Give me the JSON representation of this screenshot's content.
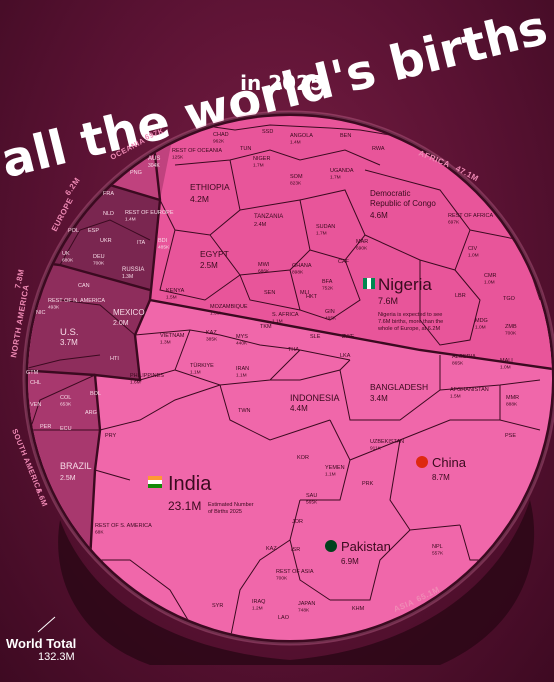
{
  "title": {
    "line1": "all the world's births",
    "line2": "in 2025"
  },
  "world_total": {
    "label": "World Total",
    "value": "132.3M"
  },
  "colors": {
    "africa": "#e8559a",
    "asia": "#f26aab",
    "europe": "#7a2650",
    "north_america": "#8e2d5c",
    "south_america": "#a8386e",
    "oceania": "#c0427e",
    "border": "#3b0a20"
  },
  "chart_data": {
    "type": "voronoi-treemap",
    "title": "all the world's births in 2025",
    "unit": "births (millions unless marked K)",
    "regions": [
      {
        "name": "AFRICA",
        "total": "47.1M"
      },
      {
        "name": "ASIA",
        "total": "65.1M"
      },
      {
        "name": "EUROPE",
        "total": "6.2M"
      },
      {
        "name": "NORTH AMERICA",
        "total": "7.8M"
      },
      {
        "name": "SOUTH AMERICA",
        "total": "5.6M"
      },
      {
        "name": "OCEANIA",
        "total": "697K"
      }
    ],
    "countries": [
      {
        "name": "Nigeria",
        "value": "7.6M",
        "region": "AFRICA"
      },
      {
        "name": "Democratic Republic of Congo",
        "value": "4.6M",
        "region": "AFRICA"
      },
      {
        "name": "ETHIOPIA",
        "value": "4.2M",
        "region": "AFRICA"
      },
      {
        "name": "EGYPT",
        "value": "2.5M",
        "region": "AFRICA"
      },
      {
        "name": "TANZANIA",
        "value": "2.4M",
        "region": "AFRICA"
      },
      {
        "name": "India",
        "value": "23.1M",
        "region": "ASIA"
      },
      {
        "name": "China",
        "value": "8.7M",
        "region": "ASIA"
      },
      {
        "name": "Pakistan",
        "value": "6.9M",
        "region": "ASIA"
      },
      {
        "name": "INDONESIA",
        "value": "4.4M",
        "region": "ASIA"
      },
      {
        "name": "BANGLADESH",
        "value": "3.4M",
        "region": "ASIA"
      },
      {
        "name": "U.S.",
        "value": "3.7M",
        "region": "NORTH AMERICA"
      },
      {
        "name": "MEXICO",
        "value": "2.0M",
        "region": "NORTH AMERICA"
      },
      {
        "name": "BRAZIL",
        "value": "2.5M",
        "region": "SOUTH AMERICA"
      },
      {
        "name": "RUSSIA",
        "value": "1.3M",
        "region": "EUROPE"
      },
      {
        "name": "AUS",
        "value": "304K",
        "region": "OCEANIA"
      }
    ],
    "annotations": [
      "Nigeria is expected to see 7.6M births, more than the whole of Europe, at 6.2M",
      "Estimated Number of Births 2025"
    ]
  },
  "labels": [
    {
      "name": "SSD",
      "value": ""
    },
    {
      "name": "CHAD",
      "value": "962K"
    },
    {
      "name": "ANGOLA",
      "value": "1.4M"
    },
    {
      "name": "BEN",
      "value": ""
    },
    {
      "name": "RWA",
      "value": ""
    },
    {
      "name": "REST OF OCEANIA",
      "value": "125K"
    },
    {
      "name": "TUN",
      "value": ""
    },
    {
      "name": "NIGER",
      "value": "1.7M"
    },
    {
      "name": "UGANDA",
      "value": "1.7M"
    },
    {
      "name": "PNG",
      "value": ""
    },
    {
      "name": "SOM",
      "value": "823K"
    },
    {
      "name": "FRA",
      "value": ""
    },
    {
      "name": "NLD",
      "value": ""
    },
    {
      "name": "REST OF EUROPE",
      "value": "1.4M"
    },
    {
      "name": "POL",
      "value": ""
    },
    {
      "name": "ESP",
      "value": ""
    },
    {
      "name": "UKR",
      "value": ""
    },
    {
      "name": "ITA",
      "value": ""
    },
    {
      "name": "UK",
      "value": "680K"
    },
    {
      "name": "DEU",
      "value": "700K"
    },
    {
      "name": "SUDAN",
      "value": "1.7M"
    },
    {
      "name": "REST OF AFRICA",
      "value": "697K"
    },
    {
      "name": "MAR",
      "value": "690K"
    },
    {
      "name": "CIV",
      "value": "1.0M"
    },
    {
      "name": "CMR",
      "value": "1.0M"
    },
    {
      "name": "MWI",
      "value": "686K"
    },
    {
      "name": "GHANA",
      "value": "898K"
    },
    {
      "name": "KENYA",
      "value": "1.5M"
    },
    {
      "name": "MOZAMBIQUE",
      "value": "1.3M"
    },
    {
      "name": "BFA",
      "value": "752K"
    },
    {
      "name": "SEN",
      "value": ""
    },
    {
      "name": "MLI",
      "value": ""
    },
    {
      "name": "GIN",
      "value": "495K"
    },
    {
      "name": "S. AFRICA",
      "value": "1.1M"
    },
    {
      "name": "MDG",
      "value": "1.0M"
    },
    {
      "name": "ZMB",
      "value": "700K"
    },
    {
      "name": "LBR",
      "value": ""
    },
    {
      "name": "TGO",
      "value": ""
    },
    {
      "name": "ALGERIA",
      "value": "865K"
    },
    {
      "name": "MALI",
      "value": "1.0M"
    },
    {
      "name": "CAN",
      "value": ""
    },
    {
      "name": "REST OF N. AMERICA",
      "value": "493K"
    },
    {
      "name": "NIC",
      "value": ""
    },
    {
      "name": "GTM",
      "value": ""
    },
    {
      "name": "HTI",
      "value": ""
    },
    {
      "name": "CHL",
      "value": ""
    },
    {
      "name": "COL",
      "value": "653K"
    },
    {
      "name": "BOL",
      "value": ""
    },
    {
      "name": "VEN",
      "value": ""
    },
    {
      "name": "ARG",
      "value": ""
    },
    {
      "name": "PER",
      "value": ""
    },
    {
      "name": "ECU",
      "value": ""
    },
    {
      "name": "VIETNAM",
      "value": "1.3M"
    },
    {
      "name": "KAZ",
      "value": "385K"
    },
    {
      "name": "MYS",
      "value": "440K"
    },
    {
      "name": "THA",
      "value": ""
    },
    {
      "name": "TÜRKIYE",
      "value": "1.1M"
    },
    {
      "name": "IRAN",
      "value": "1.1M"
    },
    {
      "name": "PHILIPPINES",
      "value": "1.6M"
    },
    {
      "name": "PRY",
      "value": ""
    },
    {
      "name": "LKA",
      "value": ""
    },
    {
      "name": "AFGHANISTAN",
      "value": "1.5M"
    },
    {
      "name": "MMR",
      "value": "888K"
    },
    {
      "name": "PSE",
      "value": ""
    },
    {
      "name": "TWN",
      "value": ""
    },
    {
      "name": "UZBEKISTAN",
      "value": "911K"
    },
    {
      "name": "YEMEN",
      "value": "1.1M"
    },
    {
      "name": "PRK",
      "value": ""
    },
    {
      "name": "SAU",
      "value": "565K"
    },
    {
      "name": "JOR",
      "value": ""
    },
    {
      "name": "REST OF S. AMERICA",
      "value": "68K"
    },
    {
      "name": "KAZ",
      "value": ""
    },
    {
      "name": "NPL",
      "value": "557K"
    },
    {
      "name": "REST OF ASIA",
      "value": "700K"
    },
    {
      "name": "IRAQ",
      "value": "1.2M"
    },
    {
      "name": "JAPAN",
      "value": "748K"
    },
    {
      "name": "SYR",
      "value": ""
    },
    {
      "name": "KHM",
      "value": ""
    },
    {
      "name": "LAO",
      "value": ""
    },
    {
      "name": "ZWE",
      "value": ""
    },
    {
      "name": "TKM",
      "value": ""
    },
    {
      "name": "SLE",
      "value": ""
    },
    {
      "name": "HKT",
      "value": ""
    },
    {
      "name": "CAF",
      "value": ""
    },
    {
      "name": "BDI",
      "value": "485K"
    },
    {
      "name": "KOR",
      "value": ""
    },
    {
      "name": "ISR",
      "value": ""
    }
  ]
}
